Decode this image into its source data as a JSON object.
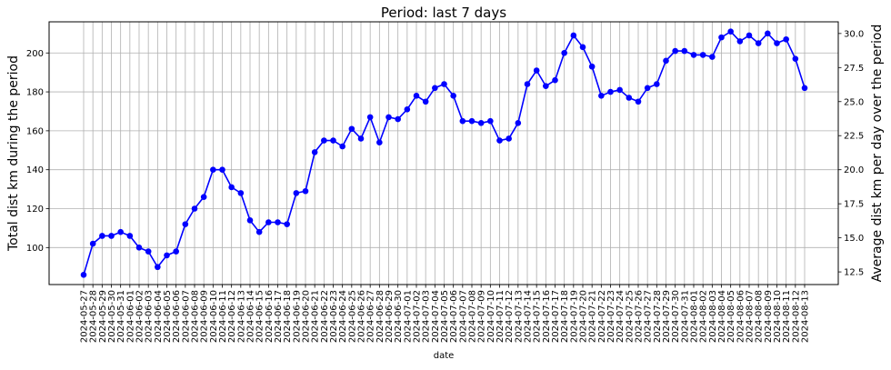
{
  "chart_data": {
    "type": "line",
    "title": "Period: last 7 days",
    "xlabel": "date",
    "ylabel_left": "Total dist km during the period",
    "ylabel_right": "Average dist km per day over the period",
    "grid": true,
    "y_left_ticks": [
      100,
      120,
      140,
      160,
      180,
      200
    ],
    "y_right_ticks": [
      12.5,
      15.0,
      17.5,
      20.0,
      22.5,
      25.0,
      27.5,
      30.0
    ],
    "y_left_range": [
      81,
      216
    ],
    "series": [
      {
        "color": "#0000ff",
        "x": [
          "2024-05-27",
          "2024-05-28",
          "2024-05-29",
          "2024-05-30",
          "2024-05-31",
          "2024-06-01",
          "2024-06-02",
          "2024-06-03",
          "2024-06-04",
          "2024-06-05",
          "2024-06-06",
          "2024-06-07",
          "2024-06-08",
          "2024-06-09",
          "2024-06-10",
          "2024-06-11",
          "2024-06-12",
          "2024-06-13",
          "2024-06-14",
          "2024-06-15",
          "2024-06-16",
          "2024-06-17",
          "2024-06-18",
          "2024-06-19",
          "2024-06-20",
          "2024-06-21",
          "2024-06-22",
          "2024-06-23",
          "2024-06-24",
          "2024-06-25",
          "2024-06-26",
          "2024-06-27",
          "2024-06-28",
          "2024-06-29",
          "2024-06-30",
          "2024-07-01",
          "2024-07-02",
          "2024-07-03",
          "2024-07-04",
          "2024-07-05",
          "2024-07-06",
          "2024-07-07",
          "2024-07-08",
          "2024-07-09",
          "2024-07-10",
          "2024-07-11",
          "2024-07-12",
          "2024-07-13",
          "2024-07-14",
          "2024-07-15",
          "2024-07-16",
          "2024-07-17",
          "2024-07-18",
          "2024-07-19",
          "2024-07-20",
          "2024-07-21",
          "2024-07-22",
          "2024-07-23",
          "2024-07-24",
          "2024-07-25",
          "2024-07-26",
          "2024-07-27",
          "2024-07-28",
          "2024-07-29",
          "2024-07-30",
          "2024-07-31",
          "2024-08-01",
          "2024-08-02",
          "2024-08-03",
          "2024-08-04",
          "2024-08-05",
          "2024-08-06",
          "2024-08-07",
          "2024-08-08",
          "2024-08-09",
          "2024-08-10",
          "2024-08-11",
          "2024-08-12",
          "2024-08-13"
        ],
        "values": [
          86,
          102,
          106,
          106,
          108,
          106,
          100,
          98,
          90,
          96,
          98,
          112,
          120,
          126,
          140,
          140,
          131,
          128,
          114,
          108,
          113,
          113,
          112,
          128,
          129,
          149,
          155,
          155,
          152,
          161,
          156,
          167,
          154,
          167,
          166,
          171,
          178,
          175,
          182,
          184,
          178,
          165,
          165,
          164,
          165,
          155,
          156,
          164,
          184,
          191,
          183,
          186,
          200,
          209,
          203,
          193,
          178,
          180,
          181,
          177,
          175,
          182,
          184,
          196,
          201,
          201,
          199,
          199,
          198,
          208,
          211,
          206,
          209,
          205,
          210,
          205,
          207,
          197,
          182
        ]
      }
    ]
  }
}
